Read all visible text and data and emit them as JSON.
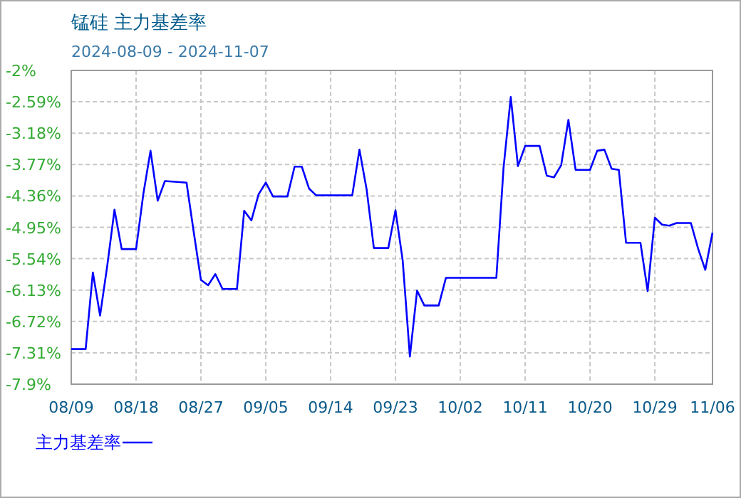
{
  "chart_data": {
    "type": "line",
    "title": "锰硅  主力基差率",
    "subtitle": "2024-08-09 - 2024-11-07",
    "x": [
      "2024-08-09",
      "2024-08-11",
      "2024-08-12",
      "2024-08-13",
      "2024-08-14",
      "2024-08-15",
      "2024-08-16",
      "2024-08-18",
      "2024-08-19",
      "2024-08-20",
      "2024-08-21",
      "2024-08-22",
      "2024-08-25",
      "2024-08-26",
      "2024-08-27",
      "2024-08-28",
      "2024-08-29",
      "2024-08-30",
      "2024-09-01",
      "2024-09-02",
      "2024-09-03",
      "2024-09-04",
      "2024-09-05",
      "2024-09-06",
      "2024-09-08",
      "2024-09-09",
      "2024-09-10",
      "2024-09-11",
      "2024-09-12",
      "2024-09-17",
      "2024-09-18",
      "2024-09-19",
      "2024-09-20",
      "2024-09-22",
      "2024-09-23",
      "2024-09-24",
      "2024-09-25",
      "2024-09-26",
      "2024-09-27",
      "2024-09-29",
      "2024-09-30",
      "2024-10-07",
      "2024-10-08",
      "2024-10-09",
      "2024-10-10",
      "2024-10-11",
      "2024-10-13",
      "2024-10-14",
      "2024-10-15",
      "2024-10-16",
      "2024-10-17",
      "2024-10-18",
      "2024-10-20",
      "2024-10-21",
      "2024-10-22",
      "2024-10-23",
      "2024-10-24",
      "2024-10-25",
      "2024-10-27",
      "2024-10-28",
      "2024-10-29",
      "2024-10-30",
      "2024-10-31",
      "2024-11-01",
      "2024-11-03",
      "2024-11-04",
      "2024-11-05",
      "2024-11-06"
    ],
    "series": [
      {
        "name": "主力基差率",
        "color": "#0000ff",
        "values": [
          -7.24,
          -7.24,
          -5.8,
          -6.61,
          -5.67,
          -4.62,
          -5.36,
          -5.36,
          -4.33,
          -3.51,
          -4.45,
          -4.08,
          -4.11,
          -5.04,
          -5.94,
          -6.04,
          -5.83,
          -6.11,
          -6.11,
          -4.64,
          -4.82,
          -4.33,
          -4.11,
          -4.37,
          -4.37,
          -3.81,
          -3.81,
          -4.22,
          -4.35,
          -4.35,
          -3.49,
          -4.24,
          -5.34,
          -5.34,
          -4.63,
          -5.57,
          -7.38,
          -6.14,
          -6.42,
          -6.42,
          -5.9,
          -5.9,
          -3.83,
          -2.5,
          -3.8,
          -3.42,
          -3.42,
          -3.98,
          -4.01,
          -3.78,
          -2.93,
          -3.87,
          -3.87,
          -3.51,
          -3.49,
          -3.85,
          -3.87,
          -5.24,
          -5.24,
          -6.15,
          -4.77,
          -4.9,
          -4.92,
          -4.87,
          -4.87,
          -5.35,
          -5.75,
          -5.05
        ]
      }
    ],
    "xlim": [
      "2024-08-09",
      "2024-11-06"
    ],
    "ylim": [
      -7.9,
      -2
    ],
    "xticks": [
      {
        "value": "2024-08-09",
        "label": "08/09"
      },
      {
        "value": "2024-08-18",
        "label": "08/18"
      },
      {
        "value": "2024-08-27",
        "label": "08/27"
      },
      {
        "value": "2024-09-05",
        "label": "09/05"
      },
      {
        "value": "2024-09-14",
        "label": "09/14"
      },
      {
        "value": "2024-09-23",
        "label": "09/23"
      },
      {
        "value": "2024-10-02",
        "label": "10/02"
      },
      {
        "value": "2024-10-11",
        "label": "10/11"
      },
      {
        "value": "2024-10-20",
        "label": "10/20"
      },
      {
        "value": "2024-10-29",
        "label": "10/29"
      },
      {
        "value": "2024-11-06",
        "label": "11/06"
      }
    ],
    "yticks": [
      {
        "value": -2,
        "label": "-2%"
      },
      {
        "value": -2.59,
        "label": "-2.59%"
      },
      {
        "value": -3.18,
        "label": "-3.18%"
      },
      {
        "value": -3.77,
        "label": "-3.77%"
      },
      {
        "value": -4.36,
        "label": "-4.36%"
      },
      {
        "value": -4.95,
        "label": "-4.95%"
      },
      {
        "value": -5.54,
        "label": "-5.54%"
      },
      {
        "value": -6.13,
        "label": "-6.13%"
      },
      {
        "value": -6.72,
        "label": "-6.72%"
      },
      {
        "value": -7.31,
        "label": "-7.31%"
      },
      {
        "value": -7.9,
        "label": "-7.9%"
      }
    ],
    "grid": true,
    "legend": "bottom left"
  }
}
